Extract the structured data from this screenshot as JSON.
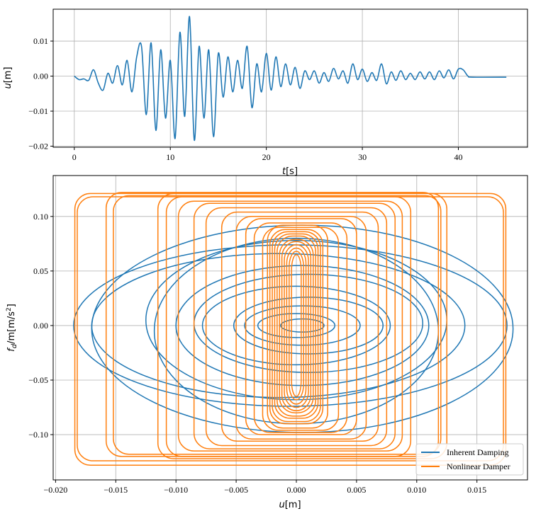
{
  "chart_data": [
    {
      "type": "line",
      "xlabel_var": "t",
      "xlabel_unit": "[s]",
      "ylabel_var": "u",
      "ylabel_unit": "[m]",
      "xlim": [
        -2.2,
        47.2
      ],
      "ylim": [
        -0.0203,
        0.0191
      ],
      "xticks": [
        0,
        10,
        20,
        30,
        40
      ],
      "xtick_labels": [
        "0",
        "10",
        "20",
        "30",
        "40"
      ],
      "yticks": [
        -0.02,
        -0.01,
        0.0,
        0.01
      ],
      "ytick_labels": [
        "−0.02",
        "−0.01",
        "0.00",
        "0.01"
      ],
      "grid": true,
      "series": [
        {
          "color": "#1f77b4",
          "x": [
            0,
            0.5,
            1,
            1.5,
            2,
            2.5,
            3,
            3.5,
            4,
            4.5,
            5,
            5.5,
            6,
            6.5,
            7,
            7.5,
            8,
            8.5,
            9,
            9.5,
            10,
            10.5,
            11,
            11.5,
            12,
            12.5,
            13,
            13.5,
            14,
            14.5,
            15,
            15.5,
            16,
            16.5,
            17,
            17.5,
            18,
            18.5,
            19,
            19.5,
            20,
            20.5,
            21,
            21.5,
            22,
            22.5,
            23,
            23.5,
            24,
            24.5,
            25,
            25.5,
            26,
            26.5,
            27,
            27.5,
            28,
            28.5,
            29,
            29.5,
            30,
            30.5,
            31,
            31.5,
            32,
            32.5,
            33,
            33.5,
            34,
            34.5,
            35,
            35.5,
            36,
            36.5,
            37,
            37.5,
            38,
            38.5,
            39,
            39.5,
            40,
            40.5,
            41,
            41.5,
            45
          ],
          "y": [
            0.0,
            -0.001,
            -0.0008,
            -0.0012,
            0.0018,
            -0.002,
            -0.004,
            0.0008,
            -0.002,
            0.003,
            -0.0025,
            0.0045,
            -0.0045,
            0.0055,
            0.0085,
            -0.011,
            0.0095,
            -0.0155,
            0.0075,
            -0.012,
            0.0045,
            -0.0178,
            0.0125,
            -0.0115,
            0.017,
            -0.0183,
            0.0085,
            -0.012,
            0.0075,
            -0.0173,
            0.0065,
            -0.006,
            0.0055,
            -0.0045,
            0.0045,
            -0.0035,
            0.0085,
            -0.009,
            0.0035,
            -0.0045,
            0.0065,
            -0.004,
            0.0055,
            -0.003,
            0.0035,
            -0.0025,
            0.0025,
            -0.0035,
            0.0015,
            -0.001,
            0.0015,
            -0.002,
            0.001,
            -0.0015,
            0.0022,
            -0.0008,
            0.0015,
            -0.002,
            0.0035,
            -0.001,
            0.002,
            -0.0015,
            0.001,
            -0.0012,
            0.0035,
            -0.0022,
            0.0012,
            -0.0012,
            0.0015,
            -0.001,
            0.0008,
            -0.001,
            0.0012,
            -0.0008,
            0.0012,
            -0.001,
            0.0015,
            -0.0005,
            0.0018,
            -0.0008,
            0.002,
            0.0018,
            0.0,
            -0.0003,
            -0.0003
          ]
        }
      ]
    },
    {
      "type": "line",
      "xlabel_var": "u",
      "xlabel_unit": "[m]",
      "ylabel_var": "f",
      "ylabel_sub": "d",
      "ylabel_mid": "/m[m/s",
      "ylabel_sup": "2",
      "ylabel_end": "]",
      "xlim": [
        -0.0202,
        0.0192
      ],
      "ylim": [
        -0.1415,
        0.1375
      ],
      "xticks": [
        -0.02,
        -0.015,
        -0.01,
        -0.005,
        0.0,
        0.005,
        0.01,
        0.015
      ],
      "xtick_labels": [
        "−0.020",
        "−0.015",
        "−0.010",
        "−0.005",
        "0.000",
        "0.005",
        "0.010",
        "0.015"
      ],
      "yticks": [
        -0.1,
        -0.05,
        0.0,
        0.05,
        0.1
      ],
      "ytick_labels": [
        "−0.10",
        "−0.05",
        "0.00",
        "0.05",
        "0.10"
      ],
      "grid": true,
      "legend": "lower-right",
      "inherent_color": "#1f77b4",
      "nonlinear_color": "#ff7f0e",
      "series": [
        {
          "name": "Inherent Damping",
          "color": "#1f77b4",
          "loops": [
            {
              "cx": -0.0005,
              "cy": 0.0,
              "a": 0.018,
              "b": 0.074
            },
            {
              "cx": 0.0005,
              "cy": -0.003,
              "a": 0.0175,
              "b": 0.095
            },
            {
              "cx": -0.0015,
              "cy": 0.0,
              "a": 0.0155,
              "b": 0.066
            },
            {
              "cx": 0.0,
              "cy": 0.005,
              "a": 0.0125,
              "b": 0.073
            },
            {
              "cx": 0.0,
              "cy": -0.005,
              "a": 0.0118,
              "b": 0.085
            },
            {
              "cx": 0.0005,
              "cy": 0.0,
              "a": 0.0105,
              "b": 0.055
            },
            {
              "cx": 0.001,
              "cy": 0.002,
              "a": 0.0095,
              "b": 0.045
            },
            {
              "cx": 0.0,
              "cy": 0.0,
              "a": 0.0078,
              "b": 0.036
            },
            {
              "cx": 0.001,
              "cy": 0.0,
              "a": 0.0062,
              "b": 0.026
            },
            {
              "cx": 0.0005,
              "cy": 0.0,
              "a": 0.0048,
              "b": 0.018
            },
            {
              "cx": 0.0,
              "cy": 0.0,
              "a": 0.0032,
              "b": 0.011
            },
            {
              "cx": 0.0005,
              "cy": 0.0,
              "a": 0.0018,
              "b": 0.006
            }
          ]
        },
        {
          "name": "Nonlinear Damper",
          "color": "#ff7f0e",
          "loops": [
            {
              "xmin": -0.0184,
              "xmax": 0.0174,
              "ymin": -0.128,
              "ymax": 0.121
            },
            {
              "xmin": -0.0182,
              "xmax": 0.0172,
              "ymin": -0.124,
              "ymax": 0.118
            },
            {
              "xmin": -0.0158,
              "xmax": 0.0118,
              "ymin": -0.12,
              "ymax": 0.122
            },
            {
              "xmin": -0.0152,
              "xmax": 0.012,
              "ymin": -0.118,
              "ymax": 0.119
            },
            {
              "xmin": -0.0115,
              "xmax": 0.0125,
              "ymin": -0.122,
              "ymax": 0.121
            },
            {
              "xmin": -0.0108,
              "xmax": 0.0095,
              "ymin": -0.12,
              "ymax": 0.118
            },
            {
              "xmin": -0.0098,
              "xmax": 0.0088,
              "ymin": -0.115,
              "ymax": 0.114
            },
            {
              "xmin": -0.0085,
              "xmax": 0.0082,
              "ymin": -0.113,
              "ymax": 0.112
            },
            {
              "xmin": -0.0075,
              "xmax": 0.0075,
              "ymin": -0.11,
              "ymax": 0.108
            },
            {
              "xmin": -0.0062,
              "xmax": 0.0068,
              "ymin": -0.106,
              "ymax": 0.104
            },
            {
              "xmin": -0.005,
              "xmax": 0.0058,
              "ymin": -0.104,
              "ymax": 0.1
            },
            {
              "xmin": -0.0042,
              "xmax": 0.005,
              "ymin": -0.1,
              "ymax": 0.098
            },
            {
              "xmin": -0.0035,
              "xmax": 0.0042,
              "ymin": -0.098,
              "ymax": 0.094
            },
            {
              "xmin": -0.0028,
              "xmax": 0.0035,
              "ymin": -0.096,
              "ymax": 0.09
            },
            {
              "xmin": -0.0024,
              "xmax": 0.0026,
              "ymin": -0.094,
              "ymax": 0.092
            },
            {
              "xmin": -0.0022,
              "xmax": 0.0022,
              "ymin": -0.09,
              "ymax": 0.088
            },
            {
              "xmin": -0.002,
              "xmax": 0.002,
              "ymin": -0.088,
              "ymax": 0.086
            },
            {
              "xmin": -0.0018,
              "xmax": 0.0018,
              "ymin": -0.085,
              "ymax": 0.084
            },
            {
              "xmin": -0.0016,
              "xmax": 0.0016,
              "ymin": -0.083,
              "ymax": 0.082
            },
            {
              "xmin": -0.0014,
              "xmax": 0.0014,
              "ymin": -0.08,
              "ymax": 0.079
            },
            {
              "xmin": -0.0012,
              "xmax": 0.0012,
              "ymin": -0.078,
              "ymax": 0.077
            },
            {
              "xmin": -0.001,
              "xmax": 0.001,
              "ymin": -0.075,
              "ymax": 0.074
            },
            {
              "xmin": -0.0008,
              "xmax": 0.0008,
              "ymin": -0.072,
              "ymax": 0.071
            },
            {
              "xmin": -0.0006,
              "xmax": 0.0006,
              "ymin": -0.068,
              "ymax": 0.068
            },
            {
              "xmin": -0.0004,
              "xmax": 0.0004,
              "ymin": -0.065,
              "ymax": 0.065
            }
          ]
        }
      ]
    }
  ]
}
